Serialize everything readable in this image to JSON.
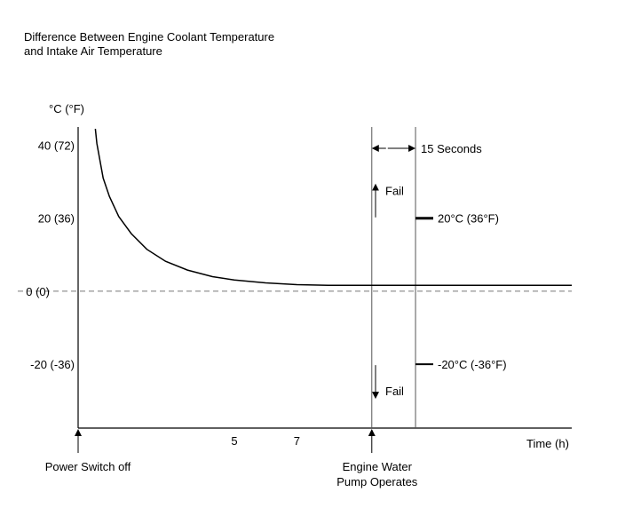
{
  "chart_data": {
    "type": "line",
    "title_lines": [
      "Difference Between Engine Coolant Temperature",
      "and Intake Air Temperature"
    ],
    "ylabel": "°C (°F)",
    "xlabel": "Time (h)",
    "y_ticks": [
      {
        "value": 40,
        "label": "40 (72)"
      },
      {
        "value": 20,
        "label": "20 (36)"
      },
      {
        "value": 0,
        "label": "0 (0)"
      },
      {
        "value": -20,
        "label": "-20 (-36)"
      }
    ],
    "x_ticks": [
      {
        "value": 5,
        "label": "5"
      },
      {
        "value": 7,
        "label": "7"
      }
    ],
    "ylim": [
      -37.5,
      45
    ],
    "xlim": [
      0,
      15.8
    ],
    "zero_line": "dashed",
    "curve": {
      "x": [
        0.55,
        0.6,
        0.8,
        1.0,
        1.3,
        1.7,
        2.2,
        2.8,
        3.5,
        4.3,
        5.0,
        6.0,
        7.0,
        8.0,
        9.0,
        9.4,
        10.5,
        12,
        14,
        15.8
      ],
      "y": [
        44.5,
        40.5,
        31,
        26,
        20.5,
        15.8,
        11.5,
        8.2,
        5.8,
        4.0,
        3.1,
        2.3,
        1.8,
        1.6,
        1.6,
        1.6,
        1.6,
        1.6,
        1.6,
        1.6
      ]
    },
    "events": [
      {
        "x": 0,
        "label": "Power Switch off"
      },
      {
        "x": 9.4,
        "label_lines": [
          "Engine Water",
          "Pump Operates"
        ]
      }
    ],
    "interval": {
      "x_start": 9.4,
      "x_end": 10.8,
      "label": "15 Seconds"
    },
    "thresholds": [
      {
        "value": 20,
        "label": "20°C (36°F)",
        "fail_label": "Fail",
        "direction": "up"
      },
      {
        "value": -20,
        "label": "-20°C (-36°F)",
        "fail_label": "Fail",
        "direction": "down"
      }
    ]
  }
}
